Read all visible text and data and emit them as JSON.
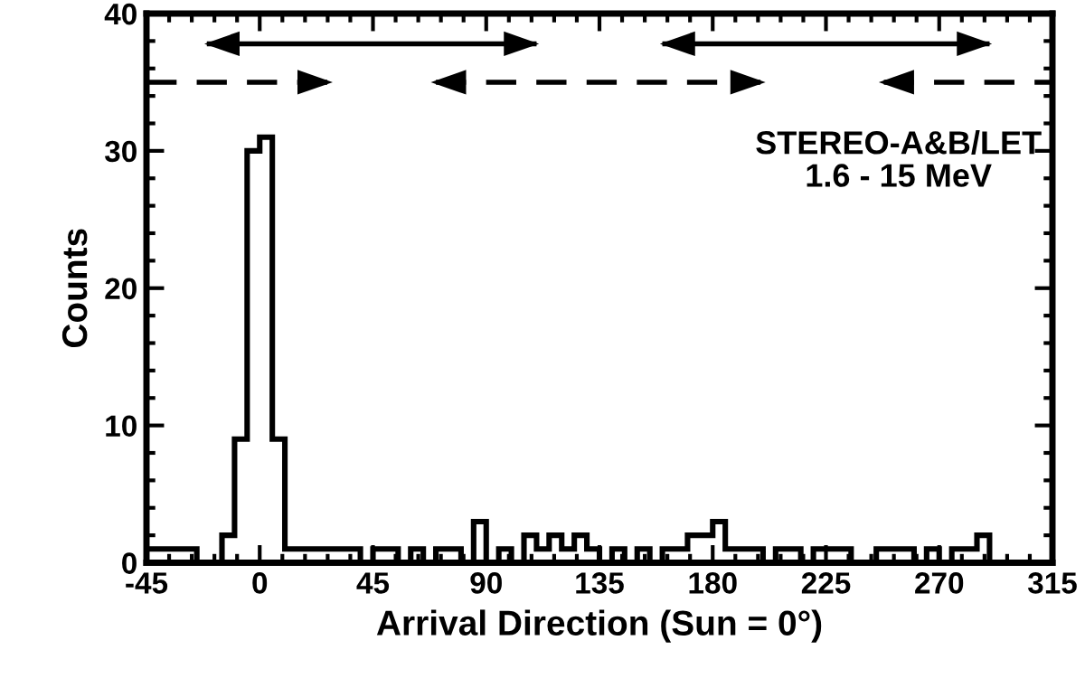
{
  "chart_data": {
    "type": "histogram",
    "xlabel": "Arrival Direction (Sun = 0°)",
    "ylabel": "Counts",
    "bins": [
      -45,
      -40,
      -35,
      -30,
      -25,
      -20,
      -15,
      -10,
      -5,
      0,
      5,
      10,
      15,
      20,
      25,
      30,
      35,
      40,
      45,
      50,
      55,
      60,
      65,
      70,
      75,
      80,
      85,
      90,
      95,
      100,
      105,
      110,
      115,
      120,
      125,
      130,
      135,
      140,
      145,
      150,
      155,
      160,
      165,
      170,
      175,
      180,
      185,
      190,
      195,
      200,
      205,
      210,
      215,
      220,
      225,
      230,
      235,
      240,
      245,
      250,
      255,
      260,
      265,
      270,
      275,
      280,
      285,
      290,
      295,
      300,
      305,
      310,
      315
    ],
    "values": [
      1,
      1,
      1,
      1,
      0,
      0,
      2,
      9,
      30,
      31,
      9,
      1,
      1,
      1,
      1,
      1,
      1,
      0,
      1,
      1,
      0,
      1,
      0,
      1,
      1,
      0,
      3,
      0,
      1,
      0,
      2,
      1,
      2,
      1,
      2,
      1,
      0,
      1,
      0,
      1,
      0,
      1,
      1,
      2,
      2,
      3,
      1,
      1,
      1,
      0,
      1,
      1,
      0,
      1,
      1,
      1,
      0,
      0,
      1,
      1,
      1,
      0,
      1,
      0,
      1,
      1,
      2,
      0,
      0,
      0,
      0,
      0
    ],
    "color": "#000000",
    "series": [
      {
        "type": "line",
        "x": [
          -20,
          109
        ],
        "values": [
          37.8,
          37.8
        ],
        "color": "#000000",
        "line_style": "solid"
      },
      {
        "type": "line",
        "x": [
          161,
          289
        ],
        "values": [
          37.8,
          37.8
        ],
        "color": "#000000",
        "line_style": "solid"
      },
      {
        "type": "line",
        "x": [
          -45,
          27
        ],
        "values": [
          35,
          35
        ],
        "color": "#000000",
        "line_style": "dashed"
      },
      {
        "type": "line",
        "x": [
          70,
          199
        ],
        "values": [
          35,
          35
        ],
        "color": "#000000",
        "line_style": "dashed"
      },
      {
        "type": "line",
        "x": [
          248,
          315
        ],
        "values": [
          35,
          35
        ],
        "color": "#000000",
        "line_style": "dashed"
      }
    ],
    "annotations": [
      "STEREO-A&B/LET",
      "1.6 - 15 MeV"
    ],
    "xlim": [
      -45,
      315
    ],
    "xticks": [
      -45,
      0,
      45,
      90,
      135,
      180,
      225,
      270,
      315
    ],
    "ylim": [
      0,
      40
    ],
    "yticks": [
      0,
      10,
      20,
      30,
      40
    ],
    "grid": false,
    "legend": false
  }
}
